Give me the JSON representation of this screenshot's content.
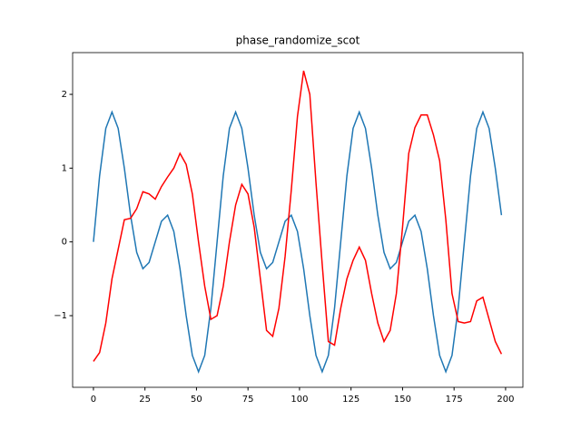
{
  "chart_data": {
    "type": "line",
    "title": "phase_randomize_scot",
    "x": [
      0,
      3,
      6,
      9,
      12,
      15,
      18,
      21,
      24,
      27,
      30,
      33,
      36,
      39,
      42,
      45,
      48,
      51,
      54,
      57,
      60,
      63,
      66,
      69,
      72,
      75,
      78,
      81,
      84,
      87,
      90,
      93,
      96,
      99,
      102,
      105,
      108,
      111,
      114,
      117,
      120,
      123,
      126,
      129,
      132,
      135,
      138,
      141,
      144,
      147,
      150,
      153,
      156,
      159,
      162,
      165,
      168,
      171,
      174,
      177,
      180,
      183,
      186,
      189,
      192,
      195,
      198
    ],
    "series": [
      {
        "color": "#1f77b4",
        "values": [
          0,
          0.897,
          1.539,
          1.76,
          1.539,
          1.0,
          0.363,
          -0.142,
          -0.363,
          -0.279,
          0,
          0.279,
          0.363,
          0.142,
          -0.363,
          -1.0,
          -1.539,
          -1.76,
          -1.539,
          -0.897,
          0,
          0.897,
          1.539,
          1.76,
          1.539,
          1.0,
          0.363,
          -0.142,
          -0.363,
          -0.279,
          0,
          0.279,
          0.363,
          0.142,
          -0.363,
          -1.0,
          -1.539,
          -1.76,
          -1.539,
          -0.897,
          0,
          0.897,
          1.539,
          1.76,
          1.539,
          1.0,
          0.363,
          -0.142,
          -0.363,
          -0.279,
          0,
          0.279,
          0.363,
          0.142,
          -0.363,
          -1.0,
          -1.539,
          -1.76,
          -1.539,
          -0.897,
          0,
          0.897,
          1.539,
          1.76,
          1.539,
          1.0,
          0.363
        ]
      },
      {
        "color": "#ff0000",
        "values": [
          -1.62,
          -1.5,
          -1.1,
          -0.5,
          -0.1,
          0.3,
          0.32,
          0.45,
          0.68,
          0.65,
          0.58,
          0.75,
          0.88,
          1.0,
          1.2,
          1.05,
          0.65,
          0.0,
          -0.6,
          -1.05,
          -1.0,
          -0.6,
          0.0,
          0.5,
          0.78,
          0.65,
          0.2,
          -0.5,
          -1.2,
          -1.28,
          -0.9,
          -0.2,
          0.7,
          1.7,
          2.32,
          2.0,
          0.8,
          -0.3,
          -1.35,
          -1.4,
          -0.9,
          -0.5,
          -0.25,
          -0.07,
          -0.25,
          -0.7,
          -1.1,
          -1.35,
          -1.2,
          -0.7,
          0.2,
          1.2,
          1.55,
          1.72,
          1.72,
          1.45,
          1.1,
          0.3,
          -0.7,
          -1.08,
          -1.1,
          -1.08,
          -0.8,
          -0.75,
          -1.05,
          -1.35,
          -1.52
        ]
      }
    ],
    "xlim": [
      -10.1,
      208.4
    ],
    "xticks": [
      0,
      25,
      50,
      75,
      100,
      125,
      150,
      175,
      200
    ],
    "ylim": [
      -1.971,
      2.566
    ],
    "yticks": [
      {
        "value": -1,
        "label": "−1"
      },
      0,
      1,
      2
    ]
  }
}
